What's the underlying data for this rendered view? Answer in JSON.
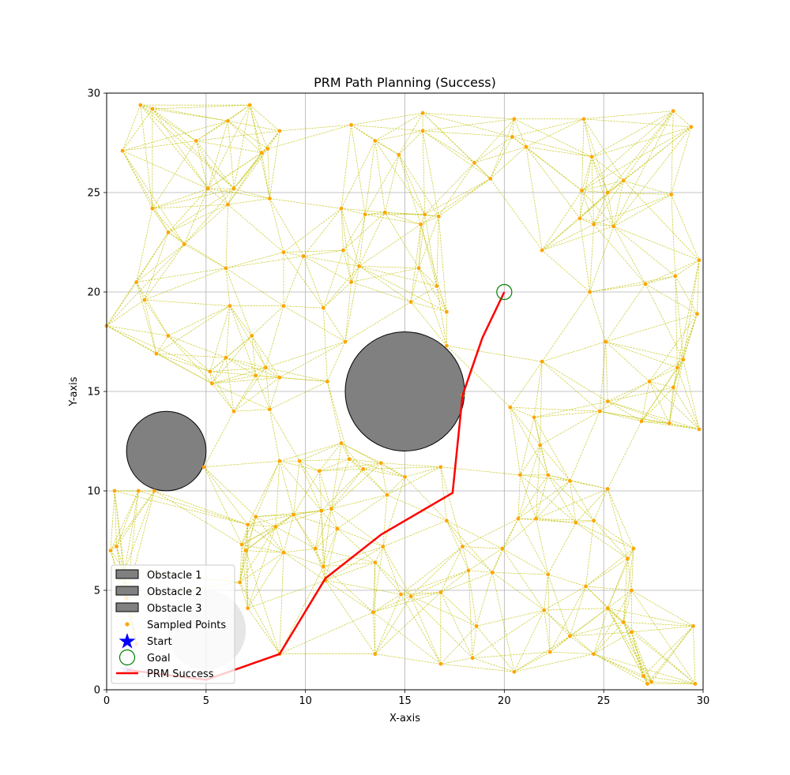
{
  "chart_data": {
    "type": "scatter",
    "title": "PRM Path Planning (Success)",
    "xlabel": "X-axis",
    "ylabel": "Y-axis",
    "xlim": [
      0,
      30
    ],
    "ylim": [
      0,
      30
    ],
    "xticks": [
      0,
      5,
      10,
      15,
      20,
      25,
      30
    ],
    "yticks": [
      0,
      5,
      10,
      15,
      20,
      25,
      30
    ],
    "grid": true,
    "legend_position": "lower-left",
    "colors": {
      "obstacle": "#808080",
      "points": "#ffa500",
      "edges": "#bfbf00",
      "start": "#0000ff",
      "goal": "#008000",
      "path": "#ff0000"
    },
    "obstacles": [
      {
        "name": "Obstacle 1",
        "cx": 15,
        "cy": 15,
        "r": 3
      },
      {
        "name": "Obstacle 2",
        "cx": 3,
        "cy": 12,
        "r": 2
      },
      {
        "name": "Obstacle 3",
        "cx": 5,
        "cy": 3,
        "r": 2
      }
    ],
    "start": {
      "name": "Start",
      "x": 1,
      "y": 1
    },
    "goal": {
      "name": "Goal",
      "x": 20,
      "y": 20
    },
    "sampled_points_label": "Sampled Points",
    "sampled_points": [
      [
        0.0,
        18.3
      ],
      [
        0.8,
        27.1
      ],
      [
        1.7,
        29.4
      ],
      [
        2.3,
        29.2
      ],
      [
        1.5,
        20.5
      ],
      [
        1.9,
        19.6
      ],
      [
        2.5,
        16.9
      ],
      [
        3.1,
        17.8
      ],
      [
        3.1,
        23.0
      ],
      [
        2.3,
        24.2
      ],
      [
        3.9,
        22.4
      ],
      [
        4.5,
        27.6
      ],
      [
        5.1,
        25.2
      ],
      [
        6.1,
        28.6
      ],
      [
        7.2,
        29.4
      ],
      [
        8.7,
        28.1
      ],
      [
        8.1,
        27.2
      ],
      [
        7.8,
        27.0
      ],
      [
        6.1,
        24.4
      ],
      [
        6.4,
        25.2
      ],
      [
        8.2,
        24.7
      ],
      [
        6.0,
        21.2
      ],
      [
        6.2,
        19.3
      ],
      [
        5.2,
        16.0
      ],
      [
        5.3,
        15.4
      ],
      [
        6.0,
        16.7
      ],
      [
        6.4,
        14.0
      ],
      [
        7.3,
        17.8
      ],
      [
        7.5,
        15.8
      ],
      [
        8.0,
        16.2
      ],
      [
        8.7,
        15.7
      ],
      [
        8.2,
        14.1
      ],
      [
        8.9,
        19.3
      ],
      [
        8.9,
        22.0
      ],
      [
        9.9,
        21.8
      ],
      [
        10.9,
        19.2
      ],
      [
        11.1,
        15.5
      ],
      [
        11.9,
        22.1
      ],
      [
        11.8,
        24.2
      ],
      [
        12.3,
        28.4
      ],
      [
        13.5,
        27.6
      ],
      [
        12.7,
        21.3
      ],
      [
        12.3,
        20.5
      ],
      [
        13.0,
        23.9
      ],
      [
        14.0,
        24.0
      ],
      [
        14.7,
        26.9
      ],
      [
        15.9,
        29.0
      ],
      [
        15.9,
        28.1
      ],
      [
        16.0,
        23.9
      ],
      [
        15.8,
        23.4
      ],
      [
        16.7,
        23.8
      ],
      [
        15.7,
        21.2
      ],
      [
        16.6,
        20.3
      ],
      [
        17.1,
        19.0
      ],
      [
        17.1,
        17.3
      ],
      [
        15.3,
        19.5
      ],
      [
        12.0,
        17.5
      ],
      [
        18.5,
        26.5
      ],
      [
        19.3,
        25.7
      ],
      [
        20.4,
        27.8
      ],
      [
        20.5,
        28.7
      ],
      [
        21.1,
        27.3
      ],
      [
        24.0,
        28.7
      ],
      [
        24.4,
        26.8
      ],
      [
        23.9,
        25.1
      ],
      [
        25.2,
        25.0
      ],
      [
        26.0,
        25.6
      ],
      [
        23.8,
        23.7
      ],
      [
        24.5,
        23.4
      ],
      [
        25.5,
        23.3
      ],
      [
        28.5,
        29.1
      ],
      [
        29.4,
        28.3
      ],
      [
        28.4,
        24.9
      ],
      [
        21.9,
        22.1
      ],
      [
        24.3,
        20.0
      ],
      [
        27.1,
        20.4
      ],
      [
        28.6,
        20.8
      ],
      [
        29.8,
        21.6
      ],
      [
        29.7,
        18.9
      ],
      [
        29.0,
        16.6
      ],
      [
        28.7,
        16.2
      ],
      [
        29.8,
        13.1
      ],
      [
        28.3,
        13.4
      ],
      [
        28.5,
        15.2
      ],
      [
        27.3,
        15.5
      ],
      [
        26.9,
        13.5
      ],
      [
        25.1,
        17.5
      ],
      [
        25.2,
        14.5
      ],
      [
        24.8,
        14.0
      ],
      [
        25.2,
        10.1
      ],
      [
        23.3,
        10.5
      ],
      [
        22.2,
        10.8
      ],
      [
        21.8,
        12.3
      ],
      [
        21.5,
        13.7
      ],
      [
        21.9,
        16.5
      ],
      [
        20.3,
        14.2
      ],
      [
        20.8,
        10.8
      ],
      [
        20.7,
        8.6
      ],
      [
        21.6,
        8.6
      ],
      [
        23.6,
        8.4
      ],
      [
        24.5,
        8.5
      ],
      [
        22.2,
        5.8
      ],
      [
        22.0,
        4.0
      ],
      [
        22.3,
        1.9
      ],
      [
        23.3,
        2.7
      ],
      [
        24.1,
        5.2
      ],
      [
        24.5,
        1.8
      ],
      [
        25.2,
        4.1
      ],
      [
        26.0,
        3.4
      ],
      [
        26.4,
        2.9
      ],
      [
        26.4,
        5.0
      ],
      [
        26.2,
        6.6
      ],
      [
        26.5,
        7.1
      ],
      [
        27.0,
        0.7
      ],
      [
        27.2,
        0.3
      ],
      [
        27.4,
        0.4
      ],
      [
        29.5,
        3.2
      ],
      [
        29.6,
        0.3
      ],
      [
        20.5,
        0.9
      ],
      [
        18.4,
        1.6
      ],
      [
        18.6,
        3.2
      ],
      [
        17.9,
        7.2
      ],
      [
        18.2,
        6.0
      ],
      [
        19.4,
        5.9
      ],
      [
        19.9,
        7.1
      ],
      [
        17.1,
        8.5
      ],
      [
        16.8,
        11.2
      ],
      [
        17.9,
        14.8
      ],
      [
        16.8,
        4.9
      ],
      [
        16.8,
        1.3
      ],
      [
        15.3,
        4.7
      ],
      [
        14.8,
        4.8
      ],
      [
        13.9,
        7.2
      ],
      [
        13.5,
        6.4
      ],
      [
        13.5,
        1.8
      ],
      [
        13.4,
        3.9
      ],
      [
        14.1,
        9.8
      ],
      [
        13.8,
        11.4
      ],
      [
        15.0,
        10.7
      ],
      [
        12.9,
        11.1
      ],
      [
        12.2,
        11.6
      ],
      [
        11.8,
        12.4
      ],
      [
        11.3,
        9.1
      ],
      [
        10.8,
        9.0
      ],
      [
        10.5,
        7.1
      ],
      [
        11.0,
        5.5
      ],
      [
        11.6,
        8.1
      ],
      [
        10.9,
        6.2
      ],
      [
        9.7,
        11.5
      ],
      [
        8.7,
        11.5
      ],
      [
        9.4,
        8.8
      ],
      [
        8.9,
        6.9
      ],
      [
        8.5,
        8.2
      ],
      [
        7.5,
        8.7
      ],
      [
        7.1,
        8.3
      ],
      [
        6.8,
        7.3
      ],
      [
        7.0,
        7.0
      ],
      [
        6.7,
        5.4
      ],
      [
        7.1,
        4.1
      ],
      [
        8.7,
        1.8
      ],
      [
        10.7,
        11.0
      ],
      [
        0.4,
        10.0
      ],
      [
        0.5,
        7.2
      ],
      [
        0.2,
        7.0
      ],
      [
        0.9,
        6.0
      ],
      [
        1.0,
        4.6
      ],
      [
        1.6,
        10.0
      ],
      [
        2.4,
        10.0
      ],
      [
        1.5,
        2.3
      ],
      [
        4.9,
        11.2
      ]
    ],
    "path_label": "PRM Success",
    "path": [
      [
        1,
        1
      ],
      [
        5,
        0.5
      ],
      [
        8.7,
        1.8
      ],
      [
        11.0,
        5.6
      ],
      [
        13.8,
        7.8
      ],
      [
        17.4,
        9.9
      ],
      [
        17.9,
        14.8
      ],
      [
        18.9,
        17.7
      ],
      [
        20,
        20
      ]
    ]
  }
}
